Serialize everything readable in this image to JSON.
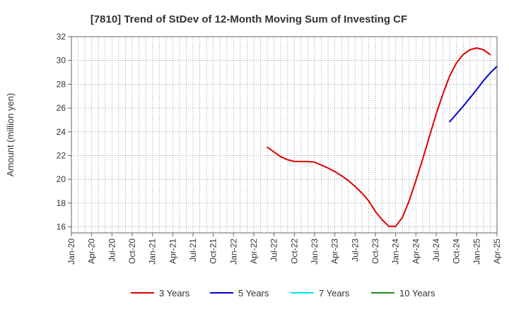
{
  "chart_data": {
    "type": "line",
    "title": "[7810]  Trend of StDev of 12-Month Moving Sum of Investing CF",
    "xlabel": "",
    "ylabel": "Amount (million yen)",
    "ylim": [
      15.5,
      32
    ],
    "yticks": [
      16,
      18,
      20,
      22,
      24,
      26,
      28,
      30,
      32
    ],
    "xlim": [
      "2020-01",
      "2025-04"
    ],
    "xticks": [
      "Jan-20",
      "Apr-20",
      "Jul-20",
      "Oct-20",
      "Jan-21",
      "Apr-21",
      "Jul-21",
      "Oct-21",
      "Jan-22",
      "Apr-22",
      "Jul-22",
      "Oct-22",
      "Jan-23",
      "Apr-23",
      "Jul-23",
      "Oct-23",
      "Jan-24",
      "Apr-24",
      "Jul-24",
      "Oct-24",
      "Jan-25",
      "Apr-25"
    ],
    "grid": true,
    "legend_position": "bottom",
    "series": [
      {
        "name": "3 Years",
        "color": "#dd0000",
        "points": [
          [
            "2022-06",
            22.7
          ],
          [
            "2022-07",
            22.3
          ],
          [
            "2022-08",
            21.9
          ],
          [
            "2022-09",
            21.65
          ],
          [
            "2022-10",
            21.5
          ],
          [
            "2022-11",
            21.5
          ],
          [
            "2022-12",
            21.5
          ],
          [
            "2023-01",
            21.45
          ],
          [
            "2023-02",
            21.2
          ],
          [
            "2023-03",
            20.95
          ],
          [
            "2023-04",
            20.65
          ],
          [
            "2023-05",
            20.3
          ],
          [
            "2023-06",
            19.9
          ],
          [
            "2023-07",
            19.4
          ],
          [
            "2023-08",
            18.85
          ],
          [
            "2023-09",
            18.2
          ],
          [
            "2023-10",
            17.3
          ],
          [
            "2023-11",
            16.6
          ],
          [
            "2023-12",
            16.05
          ],
          [
            "2024-01",
            16.05
          ],
          [
            "2024-02",
            16.8
          ],
          [
            "2024-03",
            18.2
          ],
          [
            "2024-04",
            19.9
          ],
          [
            "2024-05",
            21.7
          ],
          [
            "2024-06",
            23.6
          ],
          [
            "2024-07",
            25.5
          ],
          [
            "2024-08",
            27.2
          ],
          [
            "2024-09",
            28.7
          ],
          [
            "2024-10",
            29.8
          ],
          [
            "2024-11",
            30.5
          ],
          [
            "2024-12",
            30.9
          ],
          [
            "2025-01",
            31.05
          ],
          [
            "2025-02",
            30.9
          ],
          [
            "2025-03",
            30.5
          ]
        ]
      },
      {
        "name": "5 Years",
        "color": "#0000cc",
        "points": [
          [
            "2024-09",
            24.85
          ],
          [
            "2024-10",
            25.5
          ],
          [
            "2024-11",
            26.15
          ],
          [
            "2024-12",
            26.85
          ],
          [
            "2025-01",
            27.55
          ],
          [
            "2025-02",
            28.3
          ],
          [
            "2025-03",
            28.95
          ],
          [
            "2025-04",
            29.5
          ]
        ]
      },
      {
        "name": "7 Years",
        "color": "#00e5ee",
        "points": []
      },
      {
        "name": "10 Years",
        "color": "#228b22",
        "points": []
      }
    ]
  }
}
